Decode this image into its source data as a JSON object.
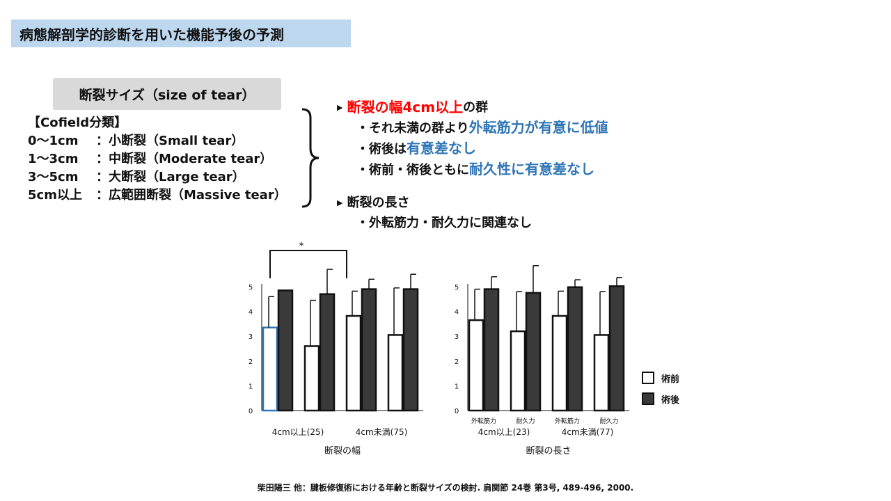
{
  "slide_title": "病態解剖学的診断を用いた機能予後の予測",
  "category_label": "断裂サイズ（size of tear）",
  "cofield": {
    "heading": "【Cofield分類】",
    "rows": [
      {
        "range": "0～1cm",
        "desc": "：小断裂（Small tear）"
      },
      {
        "range": "1～3cm",
        "desc": "：中断裂（Moderate tear）"
      },
      {
        "range": "3～5cm",
        "desc": "：大断裂（Large tear）"
      },
      {
        "range": "5cm以上",
        "desc": "：広範囲断裂（Massive tear）"
      }
    ]
  },
  "findings": {
    "width": {
      "head_red": "断裂の幅4cm以上",
      "head_rest": "の群",
      "b1_plain": "・それ未満の群より",
      "b1_blue": "外転筋力が有意に低値",
      "b2_plain": "・術後は",
      "b2_blue": "有意差なし",
      "b3_plain": "・術前・術後ともに",
      "b3_blue": "耐久性に有意差なし"
    },
    "length": {
      "head": "断裂の長さ",
      "b1": "・外転筋力・耐久力に関連なし"
    }
  },
  "legend": {
    "pre": "術前",
    "post": "術後"
  },
  "colors": {
    "post_fill": "#3a3a3a",
    "highlight_border": "#2e75b6",
    "title_bg": "#bdd7ee",
    "red": "#ff0000",
    "blue": "#2e75b6"
  },
  "chart_data": [
    {
      "type": "bar",
      "ylim": [
        0,
        5
      ],
      "yticks": [
        0,
        1,
        2,
        3,
        4,
        5
      ],
      "xlabel": "断裂の幅",
      "group_labels": [
        "4cm以上(25)",
        "4cm未満(75)"
      ],
      "categories": [
        "",
        "",
        "",
        ""
      ],
      "series": [
        {
          "values": [
            3.35,
            2.6,
            3.82,
            3.05
          ],
          "errors": [
            1.25,
            1.85,
            1.0,
            1.9
          ]
        },
        {
          "values": [
            4.85,
            4.7,
            4.9,
            4.9
          ],
          "errors": [
            0.0,
            1.0,
            0.4,
            0.6
          ]
        }
      ],
      "highlight": {
        "series": 0,
        "index": 0
      },
      "significance": {
        "between": [
          0,
          2
        ],
        "label": "*"
      }
    },
    {
      "type": "bar",
      "ylim": [
        0,
        5
      ],
      "yticks": [
        0,
        1,
        2,
        3,
        4,
        5
      ],
      "xlabel": "断裂の長さ",
      "group_labels": [
        "4cm以上(23)",
        "4cm未満(77)"
      ],
      "categories": [
        "外転筋力",
        "耐久力",
        "外転筋力",
        "耐久力"
      ],
      "series": [
        {
          "values": [
            3.65,
            3.2,
            3.82,
            3.05
          ],
          "errors": [
            1.25,
            1.6,
            1.0,
            1.75
          ]
        },
        {
          "values": [
            4.9,
            4.75,
            4.98,
            5.02
          ],
          "errors": [
            0.5,
            1.1,
            0.3,
            0.35
          ]
        }
      ]
    }
  ],
  "citation": "柴田陽三 他：腱板修復術における年齢と断裂サイズの検討. 肩関節 24巻 第3号, 489-496, 2000."
}
